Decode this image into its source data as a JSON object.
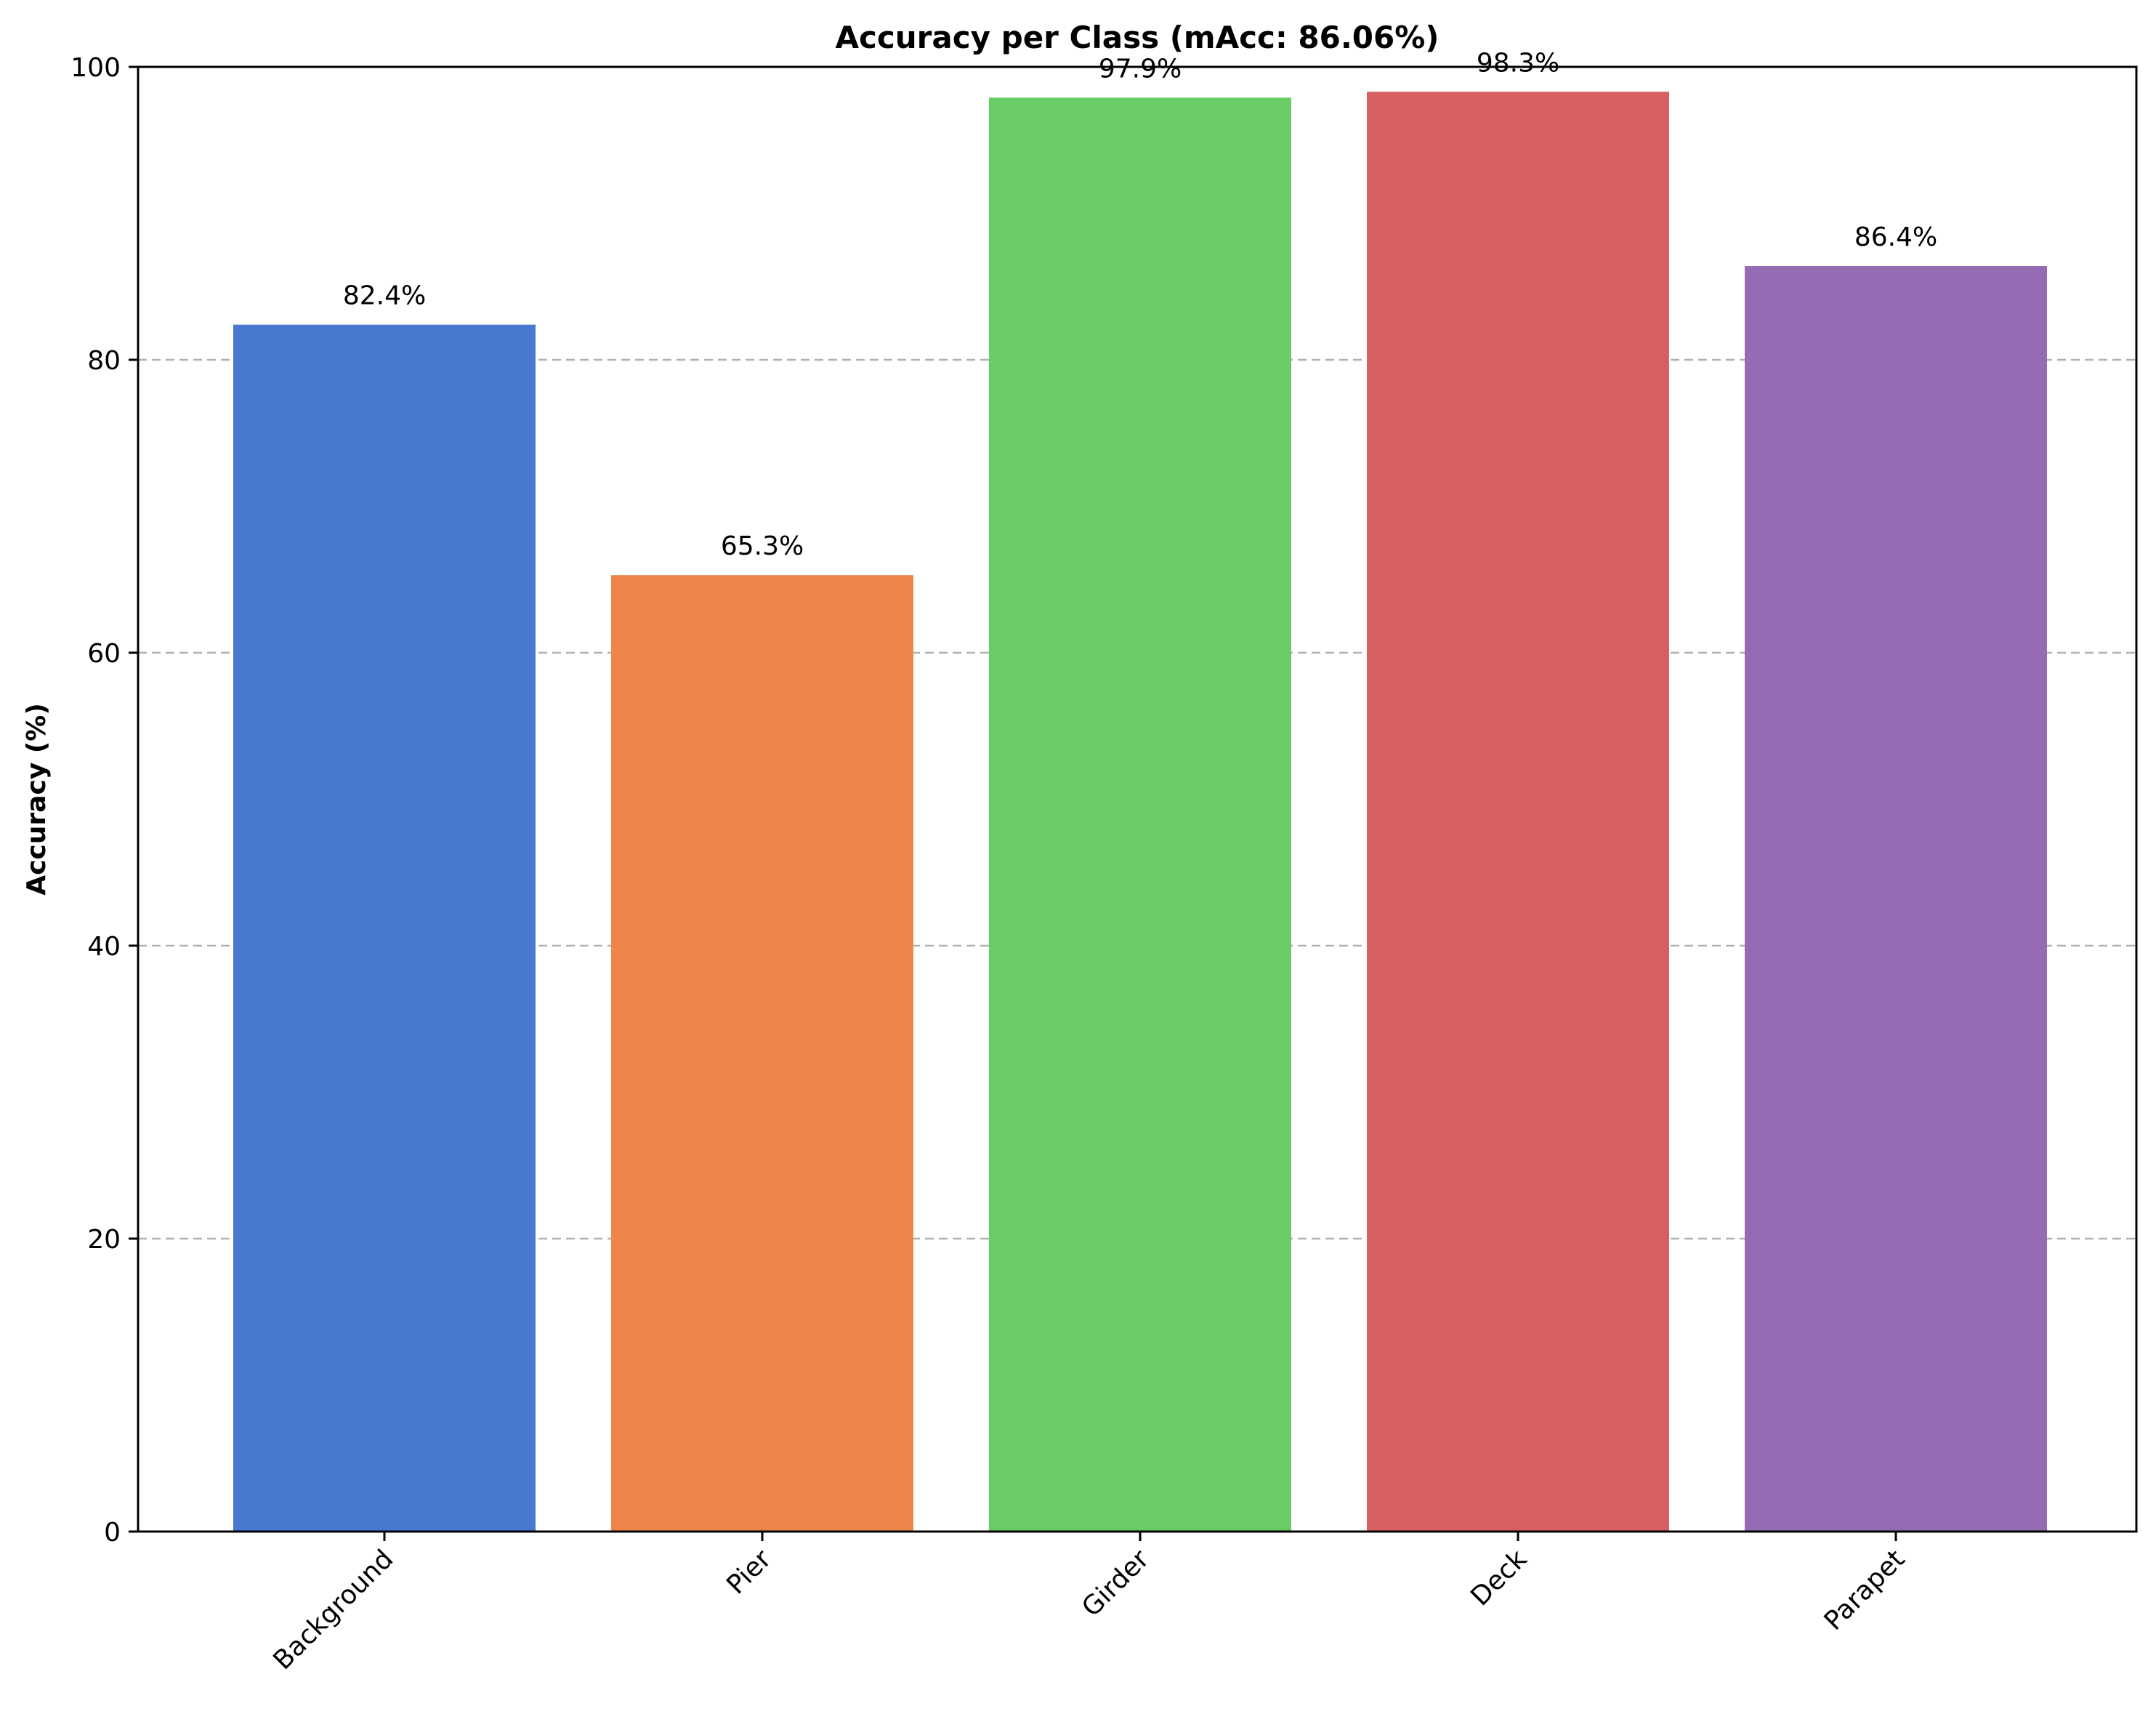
{
  "chart_data": {
    "type": "bar",
    "title": "Accuracy per Class (mAcc: 86.06%)",
    "xlabel": "",
    "ylabel": "Accuracy (%)",
    "ylim": [
      0,
      100
    ],
    "yticks": [
      0,
      20,
      40,
      60,
      80,
      100
    ],
    "grid": "y-dashed",
    "categories": [
      "Background",
      "Pier",
      "Girder",
      "Deck",
      "Parapet"
    ],
    "values": [
      82.4,
      65.3,
      97.9,
      98.3,
      86.4
    ],
    "value_labels": [
      "82.4%",
      "65.3%",
      "97.9%",
      "98.3%",
      "86.4%"
    ],
    "colors": [
      "#4878cf",
      "#ee854a",
      "#6acc64",
      "#d65f5f",
      "#956cb4"
    ]
  }
}
